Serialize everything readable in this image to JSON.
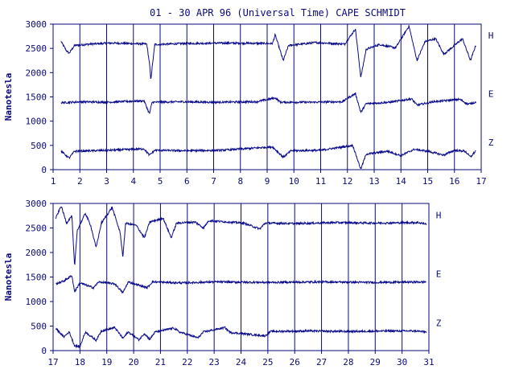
{
  "title": "01 - 30 APR 96 (Universal Time) CAPE SCHMIDT",
  "colors": {
    "line": "#0a0a8c",
    "axis": "#0a0a7a",
    "background": "#ffffff"
  },
  "chart_data": [
    {
      "type": "line",
      "panel": "top",
      "ylabel": "Nanotesla",
      "ylim": [
        0,
        3000
      ],
      "yticks": [
        "0",
        "500",
        "1000",
        "1500",
        "2000",
        "2500",
        "3000"
      ],
      "xlim": [
        1,
        17
      ],
      "xticks": [
        "1",
        "2",
        "3",
        "4",
        "5",
        "6",
        "7",
        "8",
        "9",
        "10",
        "11",
        "12",
        "13",
        "14",
        "15",
        "16",
        "17"
      ],
      "grid": "vertical",
      "series": [
        {
          "name": "H",
          "baseline": 2600,
          "values": [
            [
              1.3,
              2640
            ],
            [
              1.5,
              2450
            ],
            [
              1.6,
              2400
            ],
            [
              1.8,
              2560
            ],
            [
              2.4,
              2590
            ],
            [
              3.2,
              2610
            ],
            [
              4.5,
              2590
            ],
            [
              4.6,
              2200
            ],
            [
              4.65,
              1850
            ],
            [
              4.8,
              2580
            ],
            [
              5.9,
              2600
            ],
            [
              7.5,
              2610
            ],
            [
              9.2,
              2600
            ],
            [
              9.3,
              2780
            ],
            [
              9.6,
              2250
            ],
            [
              9.8,
              2560
            ],
            [
              10.8,
              2620
            ],
            [
              11.9,
              2590
            ],
            [
              12.3,
              2900
            ],
            [
              12.5,
              1900
            ],
            [
              12.7,
              2480
            ],
            [
              13.2,
              2580
            ],
            [
              13.8,
              2510
            ],
            [
              14.3,
              2960
            ],
            [
              14.6,
              2250
            ],
            [
              14.9,
              2640
            ],
            [
              15.3,
              2700
            ],
            [
              15.6,
              2380
            ],
            [
              16.0,
              2560
            ],
            [
              16.3,
              2700
            ],
            [
              16.6,
              2250
            ],
            [
              16.8,
              2570
            ]
          ]
        },
        {
          "name": "E",
          "baseline": 1400,
          "values": [
            [
              1.3,
              1380
            ],
            [
              2.1,
              1400
            ],
            [
              3.0,
              1390
            ],
            [
              4.4,
              1420
            ],
            [
              4.6,
              1150
            ],
            [
              4.7,
              1390
            ],
            [
              5.8,
              1400
            ],
            [
              7.1,
              1390
            ],
            [
              8.6,
              1400
            ],
            [
              9.3,
              1480
            ],
            [
              9.5,
              1390
            ],
            [
              10.6,
              1390
            ],
            [
              11.8,
              1400
            ],
            [
              12.3,
              1570
            ],
            [
              12.5,
              1180
            ],
            [
              12.7,
              1360
            ],
            [
              13.6,
              1390
            ],
            [
              14.4,
              1460
            ],
            [
              14.6,
              1330
            ],
            [
              15.2,
              1400
            ],
            [
              16.2,
              1450
            ],
            [
              16.5,
              1350
            ],
            [
              16.8,
              1390
            ]
          ]
        },
        {
          "name": "Z",
          "baseline": 400,
          "values": [
            [
              1.3,
              380
            ],
            [
              1.6,
              240
            ],
            [
              1.8,
              380
            ],
            [
              3.1,
              400
            ],
            [
              4.4,
              430
            ],
            [
              4.6,
              300
            ],
            [
              4.8,
              400
            ],
            [
              6.0,
              390
            ],
            [
              7.3,
              400
            ],
            [
              9.2,
              470
            ],
            [
              9.6,
              260
            ],
            [
              9.9,
              390
            ],
            [
              11.0,
              400
            ],
            [
              12.2,
              500
            ],
            [
              12.5,
              10
            ],
            [
              12.7,
              320
            ],
            [
              13.5,
              380
            ],
            [
              14.0,
              290
            ],
            [
              14.5,
              420
            ],
            [
              15.0,
              380
            ],
            [
              15.6,
              300
            ],
            [
              16.0,
              400
            ],
            [
              16.4,
              380
            ],
            [
              16.6,
              260
            ],
            [
              16.8,
              390
            ]
          ]
        }
      ]
    },
    {
      "type": "line",
      "panel": "bottom",
      "ylabel": "Nanotesla",
      "ylim": [
        0,
        3000
      ],
      "yticks": [
        "0",
        "500",
        "1000",
        "1500",
        "2000",
        "2500",
        "3000"
      ],
      "xlim": [
        17,
        31
      ],
      "xticks": [
        "17",
        "18",
        "19",
        "20",
        "21",
        "22",
        "23",
        "24",
        "25",
        "26",
        "27",
        "28",
        "29",
        "30",
        "31"
      ],
      "grid": "vertical",
      "series": [
        {
          "name": "H",
          "baseline": 2600,
          "values": [
            [
              17.1,
              2700
            ],
            [
              17.3,
              2950
            ],
            [
              17.5,
              2600
            ],
            [
              17.7,
              2750
            ],
            [
              17.8,
              1700
            ],
            [
              17.9,
              2450
            ],
            [
              18.2,
              2800
            ],
            [
              18.4,
              2550
            ],
            [
              18.6,
              2100
            ],
            [
              18.8,
              2600
            ],
            [
              19.2,
              2920
            ],
            [
              19.5,
              2400
            ],
            [
              19.6,
              1900
            ],
            [
              19.7,
              2600
            ],
            [
              20.1,
              2550
            ],
            [
              20.4,
              2300
            ],
            [
              20.6,
              2620
            ],
            [
              21.1,
              2700
            ],
            [
              21.4,
              2300
            ],
            [
              21.6,
              2600
            ],
            [
              22.3,
              2620
            ],
            [
              22.6,
              2500
            ],
            [
              22.8,
              2650
            ],
            [
              23.3,
              2630
            ],
            [
              24.1,
              2600
            ],
            [
              24.7,
              2480
            ],
            [
              24.9,
              2600
            ],
            [
              26.0,
              2590
            ],
            [
              27.5,
              2610
            ],
            [
              29.0,
              2600
            ],
            [
              30.6,
              2610
            ],
            [
              30.9,
              2580
            ]
          ]
        },
        {
          "name": "E",
          "baseline": 1400,
          "values": [
            [
              17.1,
              1360
            ],
            [
              17.4,
              1420
            ],
            [
              17.7,
              1530
            ],
            [
              17.8,
              1200
            ],
            [
              18.0,
              1380
            ],
            [
              18.5,
              1280
            ],
            [
              18.7,
              1400
            ],
            [
              19.3,
              1360
            ],
            [
              19.6,
              1180
            ],
            [
              19.8,
              1400
            ],
            [
              20.5,
              1280
            ],
            [
              20.7,
              1400
            ],
            [
              21.8,
              1380
            ],
            [
              23.0,
              1400
            ],
            [
              25.0,
              1390
            ],
            [
              27.0,
              1400
            ],
            [
              29.0,
              1390
            ],
            [
              30.9,
              1400
            ]
          ]
        },
        {
          "name": "Z",
          "baseline": 400,
          "values": [
            [
              17.1,
              450
            ],
            [
              17.4,
              280
            ],
            [
              17.6,
              380
            ],
            [
              17.8,
              100
            ],
            [
              18.0,
              80
            ],
            [
              18.2,
              380
            ],
            [
              18.6,
              210
            ],
            [
              18.8,
              400
            ],
            [
              19.3,
              470
            ],
            [
              19.6,
              250
            ],
            [
              19.8,
              380
            ],
            [
              20.2,
              220
            ],
            [
              20.4,
              350
            ],
            [
              20.6,
              230
            ],
            [
              20.8,
              380
            ],
            [
              21.5,
              460
            ],
            [
              21.7,
              380
            ],
            [
              22.4,
              260
            ],
            [
              22.6,
              380
            ],
            [
              23.4,
              470
            ],
            [
              23.6,
              370
            ],
            [
              24.9,
              300
            ],
            [
              25.1,
              390
            ],
            [
              26.5,
              400
            ],
            [
              28.0,
              390
            ],
            [
              29.5,
              400
            ],
            [
              30.5,
              400
            ],
            [
              30.9,
              380
            ]
          ]
        }
      ]
    }
  ]
}
